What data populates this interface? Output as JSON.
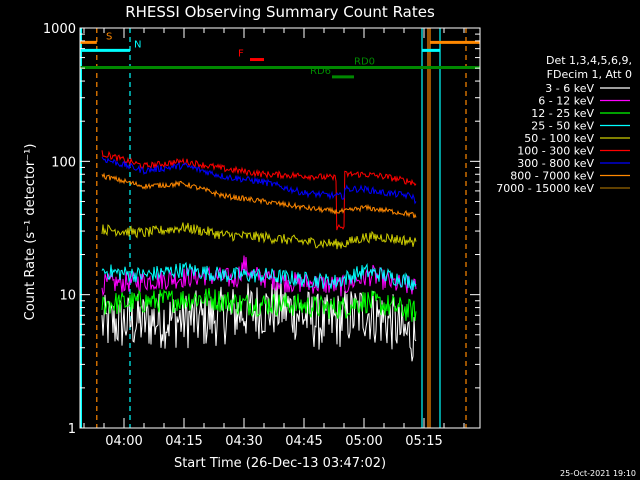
{
  "chart_data": {
    "type": "line",
    "title": "RHESSI Observing Summary Count Rates",
    "xlabel": "Start Time (26-Dec-13 03:47:02)",
    "ylabel": "Count Rate (s⁻¹ detector⁻¹)",
    "ylog": true,
    "ylim": [
      1,
      1000
    ],
    "xlim_min": [
      -11,
      89
    ],
    "x_unit": "minutes after 04:00",
    "y_ticks": [
      "1",
      "10",
      "100",
      "1000"
    ],
    "x_ticks": [
      {
        "min": 0,
        "label": "04:00"
      },
      {
        "min": 15,
        "label": "04:15"
      },
      {
        "min": 30,
        "label": "04:30"
      },
      {
        "min": 45,
        "label": "04:45"
      },
      {
        "min": 60,
        "label": "05:00"
      },
      {
        "min": 75,
        "label": "05:15"
      }
    ],
    "legend_header": [
      "Det 1,3,4,5,6,9,",
      "FDecim 1, Att 0"
    ],
    "series": [
      {
        "name": "3 - 6 keV",
        "color": "#ffffff",
        "noise": 0.22,
        "pts": [
          [
            -5.5,
            6
          ],
          [
            10,
            6.5
          ],
          [
            20,
            6.5
          ],
          [
            30,
            7.5
          ],
          [
            40,
            8
          ],
          [
            50,
            6
          ],
          [
            60,
            7.5
          ],
          [
            68,
            6
          ],
          [
            70,
            5
          ],
          [
            72,
            5
          ],
          [
            73,
            4.5
          ]
        ]
      },
      {
        "name": "6 - 12 keV",
        "color": "#ff00ff",
        "noise": 0.08,
        "pts": [
          [
            -5.5,
            12
          ],
          [
            10,
            13
          ],
          [
            20,
            14
          ],
          [
            28,
            13
          ],
          [
            30,
            17
          ],
          [
            32,
            14
          ],
          [
            40,
            12.5
          ],
          [
            50,
            12
          ],
          [
            55,
            11.5
          ],
          [
            58,
            13
          ],
          [
            62,
            14
          ],
          [
            68,
            12
          ],
          [
            72,
            11.5
          ],
          [
            73,
            11
          ]
        ]
      },
      {
        "name": "12 - 25 keV",
        "color": "#00ff00",
        "noise": 0.09,
        "pts": [
          [
            -5.5,
            8.5
          ],
          [
            10,
            9
          ],
          [
            20,
            9.5
          ],
          [
            30,
            8.5
          ],
          [
            40,
            8.5
          ],
          [
            50,
            8
          ],
          [
            55,
            8
          ],
          [
            60,
            9
          ],
          [
            68,
            8
          ],
          [
            72,
            7.5
          ],
          [
            73,
            7.5
          ]
        ]
      },
      {
        "name": "25 - 50 keV",
        "color": "#00ffff",
        "noise": 0.06,
        "pts": [
          [
            -5.5,
            15
          ],
          [
            5,
            14
          ],
          [
            15,
            15.5
          ],
          [
            25,
            14
          ],
          [
            35,
            14
          ],
          [
            45,
            13
          ],
          [
            53,
            12.5
          ],
          [
            60,
            15
          ],
          [
            65,
            14
          ],
          [
            72,
            12.5
          ],
          [
            73,
            12
          ]
        ]
      },
      {
        "name": "50 - 100 keV",
        "color": "#cccc00",
        "noise": 0.04,
        "pts": [
          [
            -5.5,
            31
          ],
          [
            5,
            29
          ],
          [
            15,
            32
          ],
          [
            25,
            28
          ],
          [
            35,
            27
          ],
          [
            45,
            25
          ],
          [
            53,
            24
          ],
          [
            55,
            24
          ],
          [
            60,
            27
          ],
          [
            65,
            27
          ],
          [
            72,
            25
          ],
          [
            73,
            25
          ]
        ]
      },
      {
        "name": "100 - 300 keV",
        "color": "#ff0000",
        "noise": 0.025,
        "pts": [
          [
            -5.5,
            115
          ],
          [
            5,
            92
          ],
          [
            15,
            100
          ],
          [
            25,
            88
          ],
          [
            35,
            80
          ],
          [
            45,
            78
          ],
          [
            53,
            75
          ],
          [
            53.2,
            32
          ],
          [
            55,
            32
          ],
          [
            55.2,
            80
          ],
          [
            60,
            80
          ],
          [
            65,
            77
          ],
          [
            72,
            70
          ],
          [
            73,
            68
          ]
        ]
      },
      {
        "name": "300 - 800 keV",
        "color": "#0000ff",
        "noise": 0.025,
        "pts": [
          [
            -5.5,
            105
          ],
          [
            5,
            85
          ],
          [
            15,
            93
          ],
          [
            25,
            77
          ],
          [
            35,
            70
          ],
          [
            45,
            58
          ],
          [
            53,
            55
          ],
          [
            55,
            55
          ],
          [
            55.2,
            62
          ],
          [
            60,
            62
          ],
          [
            65,
            58
          ],
          [
            72,
            55
          ],
          [
            73,
            50
          ]
        ]
      },
      {
        "name": "800 - 7000 keV",
        "color": "#ff8800",
        "noise": 0.02,
        "pts": [
          [
            -5.5,
            78
          ],
          [
            5,
            65
          ],
          [
            15,
            68
          ],
          [
            25,
            55
          ],
          [
            35,
            50
          ],
          [
            45,
            45
          ],
          [
            53,
            42
          ],
          [
            55,
            42
          ],
          [
            60,
            45
          ],
          [
            65,
            43
          ],
          [
            72,
            40
          ],
          [
            73,
            38
          ]
        ]
      },
      {
        "name": "7000 - 15000 keV",
        "color": "#996600",
        "noise": 0,
        "pts": []
      }
    ],
    "flags": [
      {
        "label": "S",
        "color": "#ff8800",
        "y": 780,
        "segments": [
          [
            -11,
            -6.8
          ],
          [
            76.5,
            89
          ]
        ],
        "label_x": -4.5
      },
      {
        "label": "N",
        "color": "#00ffff",
        "y": 680,
        "segments": [
          [
            -11,
            1.5
          ],
          [
            74.5,
            79
          ]
        ],
        "label_x": 2.5
      },
      {
        "label": "F",
        "color": "#ff0000",
        "y": 580,
        "segments": [
          [
            31.5,
            35
          ]
        ],
        "label_x": 28.5
      },
      {
        "label": "RD0",
        "color": "#008800",
        "y": 505,
        "segments": [
          [
            -11,
            89
          ]
        ],
        "label_x": 57.5
      },
      {
        "label": "RD6",
        "color": "#008800",
        "y": 430,
        "segments": [
          [
            52,
            57.5
          ]
        ],
        "label_x": 46.5
      }
    ],
    "vlines": [
      {
        "min": -6.8,
        "color": "#ff8800",
        "dash": true
      },
      {
        "min": 1.5,
        "color": "#00ffff",
        "dash": true
      },
      {
        "min": 74.5,
        "color": "#00ffff",
        "dash": false
      },
      {
        "min": 76,
        "color": "#ff8800",
        "dash": false
      },
      {
        "min": 76.5,
        "color": "#ff8800",
        "dash": false
      },
      {
        "min": 79,
        "color": "#00ffff",
        "dash": false
      },
      {
        "min": 85.5,
        "color": "#ff8800",
        "dash": true
      }
    ],
    "left_edge_line_color": "#00ffff",
    "timestamp": "25-Oct-2021 19:10"
  }
}
